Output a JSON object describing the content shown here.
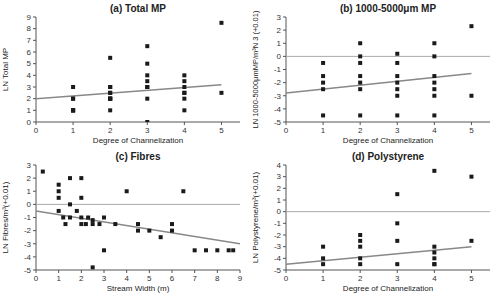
{
  "chart_data": [
    {
      "type": "scatter",
      "title": "(a) Total MP",
      "x_label": "Degree of Channelization",
      "y_label": "LN Total MP",
      "xlim": [
        0,
        5.5
      ],
      "ylim": [
        0,
        9
      ],
      "xticks": [
        0,
        1,
        2,
        3,
        4,
        5
      ],
      "yticks": [
        0,
        1,
        2,
        3,
        4,
        5,
        6,
        7,
        8,
        9
      ],
      "series": [
        {
          "type": "scatter",
          "marker": "square",
          "color": "#1a1a1a",
          "x": [
            1,
            1,
            1,
            1,
            1,
            1,
            1,
            2,
            2,
            2,
            2,
            2,
            2,
            2,
            2,
            2,
            2,
            3,
            3,
            3,
            3,
            3,
            3,
            3,
            3,
            4,
            4,
            4,
            4,
            4,
            4,
            4,
            5,
            5
          ],
          "values": [
            3,
            2,
            2,
            1,
            1,
            1,
            1,
            5.5,
            3,
            3,
            2.5,
            2.5,
            2,
            2,
            2,
            2,
            1,
            6.5,
            5,
            4,
            3.5,
            3,
            3,
            2,
            0,
            4,
            3.5,
            3,
            2.5,
            2.5,
            2,
            1,
            8.5,
            2.5
          ]
        },
        {
          "type": "line",
          "color": "#888888",
          "x": [
            0,
            5
          ],
          "values": [
            2.0,
            3.2
          ]
        }
      ]
    },
    {
      "type": "scatter",
      "title": "(b) 1000-5000μm MP",
      "x_label": "Degree of Channelization",
      "y_label": "LN 1000-5000μmMP/m³N 3 (+0.01)",
      "xlim": [
        0,
        5.5
      ],
      "ylim": [
        -5,
        3
      ],
      "xticks": [
        0,
        1,
        2,
        3,
        4,
        5
      ],
      "yticks": [
        -5,
        -4,
        -3,
        -2,
        -1,
        0,
        1,
        2,
        3
      ],
      "hlines": [
        {
          "y": 0,
          "color": "#aaaaaa"
        }
      ],
      "series": [
        {
          "type": "scatter",
          "marker": "square",
          "color": "#1a1a1a",
          "x": [
            1,
            1,
            1,
            1,
            1,
            2,
            2,
            2,
            2,
            2,
            2,
            2,
            3,
            3,
            3,
            3,
            3,
            3,
            3,
            4,
            4,
            4,
            4,
            4,
            4,
            4,
            5,
            5
          ],
          "values": [
            -0.5,
            -1.5,
            -2,
            -2.5,
            -4.5,
            1,
            0,
            -0.5,
            -1.5,
            -2,
            -2.5,
            -4.5,
            0.2,
            -0.5,
            -1.5,
            -2,
            -2.5,
            -3,
            -4.5,
            1,
            0,
            -1.5,
            -2,
            -2.5,
            -3,
            -4.5,
            2.3,
            -3
          ]
        },
        {
          "type": "line",
          "color": "#888888",
          "x": [
            0,
            5
          ],
          "values": [
            -2.8,
            -1.3
          ]
        }
      ]
    },
    {
      "type": "scatter",
      "title": "(c) Fibres",
      "x_label": "Stream Width (m)",
      "y_label": "LN Fibres/m³(+0.01)",
      "xlim": [
        0,
        9
      ],
      "ylim": [
        -5,
        3
      ],
      "xticks": [
        0,
        1,
        2,
        3,
        4,
        5,
        6,
        7,
        8,
        9
      ],
      "yticks": [
        -5,
        -4,
        -3,
        -2,
        -1,
        0,
        1,
        2,
        3
      ],
      "hlines": [
        {
          "y": 0,
          "color": "#aaaaaa"
        }
      ],
      "series": [
        {
          "type": "scatter",
          "marker": "square",
          "color": "#1a1a1a",
          "x": [
            0.3,
            1,
            1,
            1,
            1,
            1.2,
            1.3,
            1.5,
            1.5,
            1.5,
            1.8,
            2,
            2,
            2,
            2,
            2.2,
            2.3,
            2.5,
            2.5,
            2.5,
            2.8,
            3,
            3,
            3.5,
            4,
            4.5,
            4.5,
            5,
            5.5,
            6,
            6,
            6.5,
            7,
            7.5,
            8,
            8.5,
            8.7
          ],
          "values": [
            2.5,
            1.5,
            1,
            0.5,
            -0.5,
            -1,
            -1.5,
            2,
            0,
            -1,
            -0.5,
            2,
            0.5,
            -1,
            -1.5,
            -1.5,
            -1,
            -1.2,
            -1.5,
            -4.8,
            -1.5,
            -1,
            -3.5,
            -1.5,
            1,
            -2,
            -1.5,
            -2,
            -2.5,
            -1.5,
            -2,
            1,
            -3.5,
            -3.5,
            -3.5,
            -3.5,
            -3.5
          ]
        },
        {
          "type": "line",
          "color": "#888888",
          "x": [
            0,
            9
          ],
          "values": [
            -0.5,
            -3.0
          ]
        }
      ]
    },
    {
      "type": "scatter",
      "title": "(d) Polystyrene",
      "x_label": "Degree of Channelization",
      "y_label": "LN Polystyrene/m³(+0.01)",
      "xlim": [
        0,
        5.5
      ],
      "ylim": [
        -5,
        4
      ],
      "xticks": [
        0,
        1,
        2,
        3,
        4,
        5
      ],
      "yticks": [
        -5,
        -4,
        -3,
        -2,
        -1,
        0,
        1,
        2,
        3,
        4
      ],
      "hlines": [
        {
          "y": 0,
          "color": "#aaaaaa"
        }
      ],
      "series": [
        {
          "type": "scatter",
          "marker": "square",
          "color": "#1a1a1a",
          "x": [
            1,
            1,
            1,
            2,
            2,
            2,
            2,
            2,
            3,
            3,
            3,
            3,
            4,
            4,
            4,
            4,
            4,
            4,
            5,
            5
          ],
          "values": [
            -3,
            -4,
            -4.5,
            -2,
            -2.5,
            -3,
            -4,
            -4.5,
            1.5,
            -1,
            -2.5,
            -4.5,
            3.5,
            -3,
            -3.5,
            -4,
            -4.5,
            -4.5,
            3,
            -2.5
          ]
        },
        {
          "type": "line",
          "color": "#888888",
          "x": [
            0,
            5
          ],
          "values": [
            -4.5,
            -3.0
          ]
        }
      ]
    }
  ]
}
